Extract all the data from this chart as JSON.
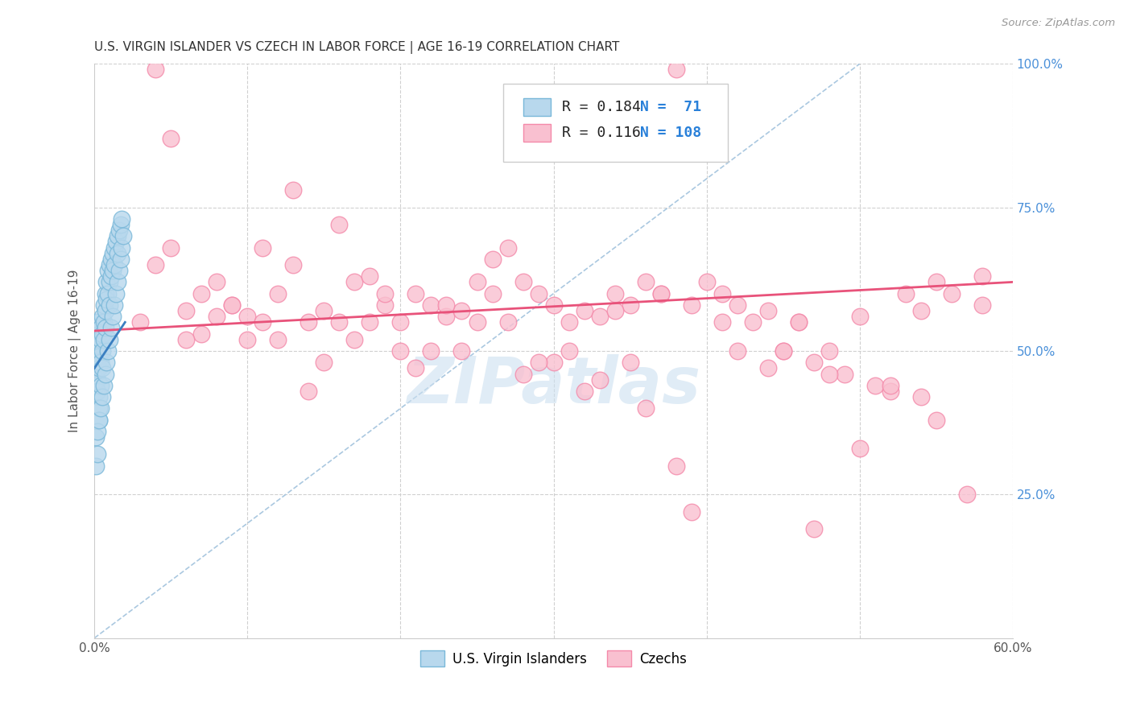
{
  "title": "U.S. VIRGIN ISLANDER VS CZECH IN LABOR FORCE | AGE 16-19 CORRELATION CHART",
  "source": "Source: ZipAtlas.com",
  "ylabel": "In Labor Force | Age 16-19",
  "xlim": [
    0.0,
    0.6
  ],
  "ylim": [
    0.0,
    1.0
  ],
  "xticks": [
    0.0,
    0.1,
    0.2,
    0.3,
    0.4,
    0.5,
    0.6
  ],
  "xticklabels": [
    "0.0%",
    "",
    "",
    "",
    "",
    "",
    "60.0%"
  ],
  "yticks": [
    0.0,
    0.25,
    0.5,
    0.75,
    1.0
  ],
  "yticklabels_right": [
    "",
    "25.0%",
    "50.0%",
    "75.0%",
    "100.0%"
  ],
  "legend_labels": [
    "U.S. Virgin Islanders",
    "Czechs"
  ],
  "R_vi": 0.184,
  "N_vi": 71,
  "R_czech": 0.116,
  "N_czech": 108,
  "blue_edge": "#7ab8d9",
  "blue_fill": "#b8d8ed",
  "pink_edge": "#f48aaa",
  "pink_fill": "#f9c0d0",
  "trend_blue": "#3a7fc1",
  "trend_pink": "#e8527a",
  "ref_line_color": "#aac8e0",
  "watermark_color": "#cce0f0",
  "background": "#ffffff",
  "grid_color": "#d0d0d0",
  "vi_x": [
    0.001,
    0.001,
    0.001,
    0.001,
    0.002,
    0.002,
    0.002,
    0.002,
    0.002,
    0.002,
    0.003,
    0.003,
    0.003,
    0.003,
    0.003,
    0.003,
    0.003,
    0.004,
    0.004,
    0.004,
    0.004,
    0.005,
    0.005,
    0.005,
    0.005,
    0.006,
    0.006,
    0.006,
    0.007,
    0.007,
    0.007,
    0.008,
    0.008,
    0.009,
    0.009,
    0.01,
    0.01,
    0.01,
    0.011,
    0.011,
    0.012,
    0.012,
    0.013,
    0.013,
    0.014,
    0.015,
    0.015,
    0.016,
    0.017,
    0.018,
    0.001,
    0.001,
    0.002,
    0.002,
    0.003,
    0.004,
    0.005,
    0.006,
    0.007,
    0.008,
    0.009,
    0.01,
    0.011,
    0.012,
    0.013,
    0.014,
    0.015,
    0.016,
    0.017,
    0.018,
    0.019
  ],
  "vi_y": [
    0.5,
    0.48,
    0.46,
    0.44,
    0.52,
    0.49,
    0.47,
    0.45,
    0.43,
    0.55,
    0.53,
    0.51,
    0.49,
    0.47,
    0.42,
    0.4,
    0.38,
    0.54,
    0.52,
    0.48,
    0.44,
    0.56,
    0.53,
    0.5,
    0.47,
    0.58,
    0.55,
    0.52,
    0.6,
    0.57,
    0.54,
    0.62,
    0.59,
    0.64,
    0.6,
    0.65,
    0.62,
    0.58,
    0.66,
    0.63,
    0.67,
    0.64,
    0.68,
    0.65,
    0.69,
    0.7,
    0.67,
    0.71,
    0.72,
    0.73,
    0.35,
    0.3,
    0.36,
    0.32,
    0.38,
    0.4,
    0.42,
    0.44,
    0.46,
    0.48,
    0.5,
    0.52,
    0.54,
    0.56,
    0.58,
    0.6,
    0.62,
    0.64,
    0.66,
    0.68,
    0.7
  ],
  "czech_x": [
    0.03,
    0.04,
    0.05,
    0.06,
    0.07,
    0.08,
    0.09,
    0.1,
    0.11,
    0.12,
    0.13,
    0.14,
    0.15,
    0.16,
    0.17,
    0.18,
    0.19,
    0.2,
    0.21,
    0.22,
    0.23,
    0.24,
    0.25,
    0.26,
    0.27,
    0.28,
    0.29,
    0.3,
    0.31,
    0.32,
    0.33,
    0.34,
    0.35,
    0.36,
    0.37,
    0.38,
    0.39,
    0.4,
    0.41,
    0.42,
    0.43,
    0.44,
    0.45,
    0.46,
    0.47,
    0.48,
    0.49,
    0.5,
    0.51,
    0.52,
    0.53,
    0.54,
    0.55,
    0.56,
    0.57,
    0.58,
    0.07,
    0.1,
    0.13,
    0.16,
    0.2,
    0.23,
    0.27,
    0.3,
    0.34,
    0.37,
    0.41,
    0.45,
    0.48,
    0.52,
    0.55,
    0.05,
    0.08,
    0.12,
    0.15,
    0.18,
    0.22,
    0.25,
    0.28,
    0.32,
    0.35,
    0.38,
    0.42,
    0.46,
    0.5,
    0.54,
    0.58,
    0.04,
    0.06,
    0.09,
    0.11,
    0.14,
    0.17,
    0.19,
    0.21,
    0.24,
    0.26,
    0.29,
    0.31,
    0.33,
    0.36,
    0.39,
    0.44,
    0.47
  ],
  "czech_y": [
    0.55,
    0.99,
    0.87,
    0.57,
    0.6,
    0.62,
    0.58,
    0.52,
    0.68,
    0.6,
    0.65,
    0.55,
    0.57,
    0.72,
    0.62,
    0.63,
    0.58,
    0.55,
    0.6,
    0.58,
    0.56,
    0.57,
    0.62,
    0.66,
    0.68,
    0.62,
    0.6,
    0.58,
    0.55,
    0.57,
    0.56,
    0.6,
    0.58,
    0.62,
    0.6,
    0.99,
    0.58,
    0.62,
    0.6,
    0.58,
    0.55,
    0.57,
    0.5,
    0.55,
    0.48,
    0.5,
    0.46,
    0.56,
    0.44,
    0.43,
    0.6,
    0.57,
    0.62,
    0.6,
    0.25,
    0.58,
    0.53,
    0.56,
    0.78,
    0.55,
    0.5,
    0.58,
    0.55,
    0.48,
    0.57,
    0.6,
    0.55,
    0.5,
    0.46,
    0.44,
    0.38,
    0.68,
    0.56,
    0.52,
    0.48,
    0.55,
    0.5,
    0.55,
    0.46,
    0.43,
    0.48,
    0.3,
    0.5,
    0.55,
    0.33,
    0.42,
    0.63,
    0.65,
    0.52,
    0.58,
    0.55,
    0.43,
    0.52,
    0.6,
    0.47,
    0.5,
    0.6,
    0.48,
    0.5,
    0.45,
    0.4,
    0.22,
    0.47,
    0.19
  ],
  "vi_trend_x": [
    0.0,
    0.02
  ],
  "vi_trend_y": [
    0.47,
    0.55
  ],
  "czech_trend_x": [
    0.0,
    0.6
  ],
  "czech_trend_y": [
    0.535,
    0.62
  ]
}
